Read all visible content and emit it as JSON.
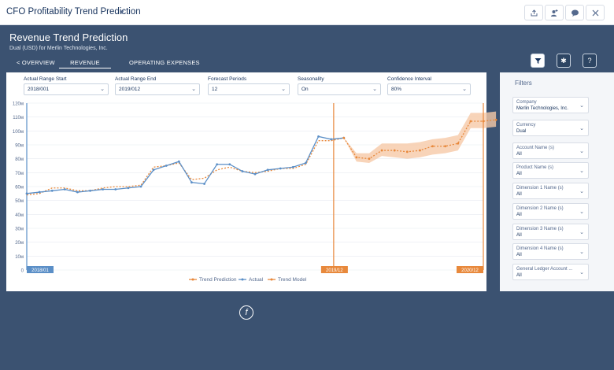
{
  "app": {
    "title": "CFO Profitability Trend Prediction"
  },
  "header": {
    "title": "Revenue Trend Prediction",
    "subtitle": "Dual (USD) for Merlin Technologies, Inc."
  },
  "tabs": [
    {
      "label": "< OVERVIEW"
    },
    {
      "label": "REVENUE"
    },
    {
      "label": "OPERATING EXPENSES"
    }
  ],
  "controls": [
    {
      "label": "Actual Range Start",
      "value": "2018/001"
    },
    {
      "label": "Actual Range End",
      "value": "2019/012"
    },
    {
      "label": "Forecast Periods",
      "value": "12"
    },
    {
      "label": "Seasonality",
      "value": "On"
    },
    {
      "label": "Confidence Interval",
      "value": "80%"
    }
  ],
  "filters": {
    "title": "Filters",
    "items": [
      {
        "label": "Company",
        "value": "Merlin Technologies, Inc."
      },
      {
        "label": "Currency",
        "value": "Dual"
      },
      {
        "label": "Account Name (s)",
        "value": "All"
      },
      {
        "label": "Product Name (s)",
        "value": "All"
      },
      {
        "label": "Dimension 1 Name (s)",
        "value": "All"
      },
      {
        "label": "Dimension 2 Name (s)",
        "value": "All"
      },
      {
        "label": "Dimension 3 Name (s)",
        "value": "All"
      },
      {
        "label": "Dimension 4 Name (s)",
        "value": "All"
      },
      {
        "label": "General Ledger Account ...",
        "value": "All"
      }
    ]
  },
  "icons": {
    "share": "share-icon",
    "follow": "follow-icon",
    "comment": "comment-icon",
    "close": "close-icon",
    "filter": "filter-icon",
    "settings": "gear-icon",
    "help": "help-icon",
    "caret": "chevron-down-icon",
    "logo": "logo-icon"
  },
  "colors": {
    "actual": "#5b8fc7",
    "prediction": "#e8893c",
    "band": "#f6c9a7",
    "start_marker": "#5b8fc7",
    "forecast_marker": "#e8893c"
  },
  "chart_data": {
    "type": "line",
    "ylim": [
      0,
      120
    ],
    "yticks": [
      "0",
      "10м",
      "20м",
      "30м",
      "40м",
      "50м",
      "60м",
      "70м",
      "80м",
      "90м",
      "100м",
      "110м",
      "120м"
    ],
    "markers": [
      {
        "label": "2018/01"
      },
      {
        "label": "2019/12"
      },
      {
        "label": "2020/12"
      }
    ],
    "legend": [
      "Trend Prediction",
      "Actual",
      "Trend Model"
    ],
    "series": [
      {
        "name": "Actual",
        "values": [
          55,
          56,
          57,
          58,
          56,
          57,
          58,
          58,
          59,
          60,
          72,
          75,
          78,
          63,
          62,
          76,
          76,
          71,
          69,
          72,
          73,
          74,
          77,
          96,
          94,
          95
        ]
      },
      {
        "name": "Trend Model",
        "values": [
          54,
          55,
          59,
          59,
          57,
          57,
          59,
          60,
          60,
          61,
          74,
          75,
          77,
          65,
          66,
          72,
          74,
          71,
          70,
          71,
          73,
          73,
          76,
          93,
          93,
          95
        ]
      },
      {
        "name": "Trend Prediction",
        "values": [
          95,
          81,
          80,
          86,
          86,
          85,
          86,
          89,
          89,
          91,
          107,
          107,
          108
        ]
      },
      {
        "name": "Trend Prediction upper",
        "values": [
          95,
          84,
          84,
          91,
          91,
          91,
          92,
          94,
          95,
          97,
          113,
          113,
          114
        ]
      },
      {
        "name": "Trend Prediction lower",
        "values": [
          95,
          78,
          77,
          82,
          81,
          80,
          81,
          83,
          84,
          86,
          102,
          102,
          103
        ]
      }
    ]
  }
}
